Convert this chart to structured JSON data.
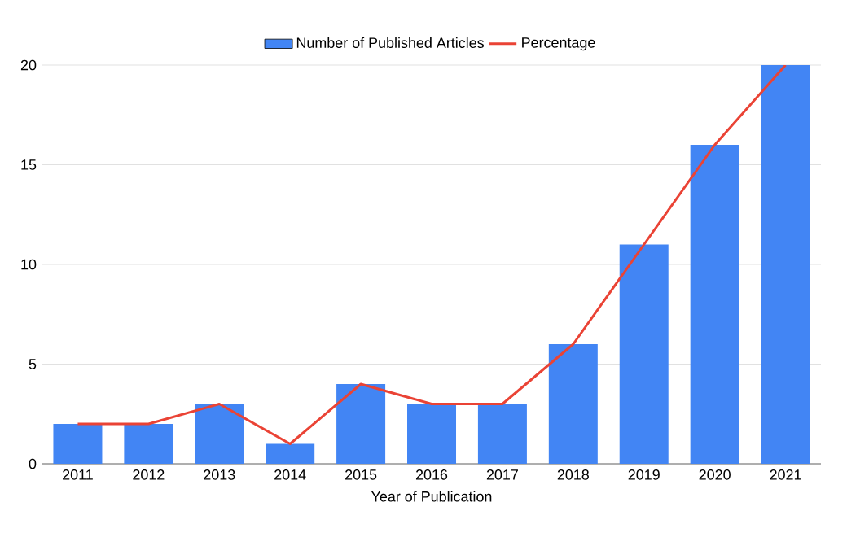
{
  "chart_data": {
    "type": "bar",
    "xlabel": "Year of Publication",
    "categories": [
      "2011",
      "2012",
      "2013",
      "2014",
      "2015",
      "2016",
      "2017",
      "2018",
      "2019",
      "2020",
      "2021"
    ],
    "series": [
      {
        "name": "Number of Published Articles",
        "color": "#4285f4",
        "values": [
          2,
          2,
          3,
          1,
          4,
          3,
          3,
          6,
          11,
          16,
          20
        ]
      },
      {
        "name": "Percentage",
        "type": "line",
        "color": "#ea4335",
        "values": [
          2,
          2,
          3,
          1,
          4,
          3,
          3,
          6,
          11,
          16,
          20
        ]
      }
    ],
    "ylim": [
      0,
      20
    ],
    "yticks": [
      0,
      5,
      10,
      15,
      20
    ],
    "grid": "y",
    "legend": "top",
    "marker": "none",
    "line_style": "solid"
  }
}
